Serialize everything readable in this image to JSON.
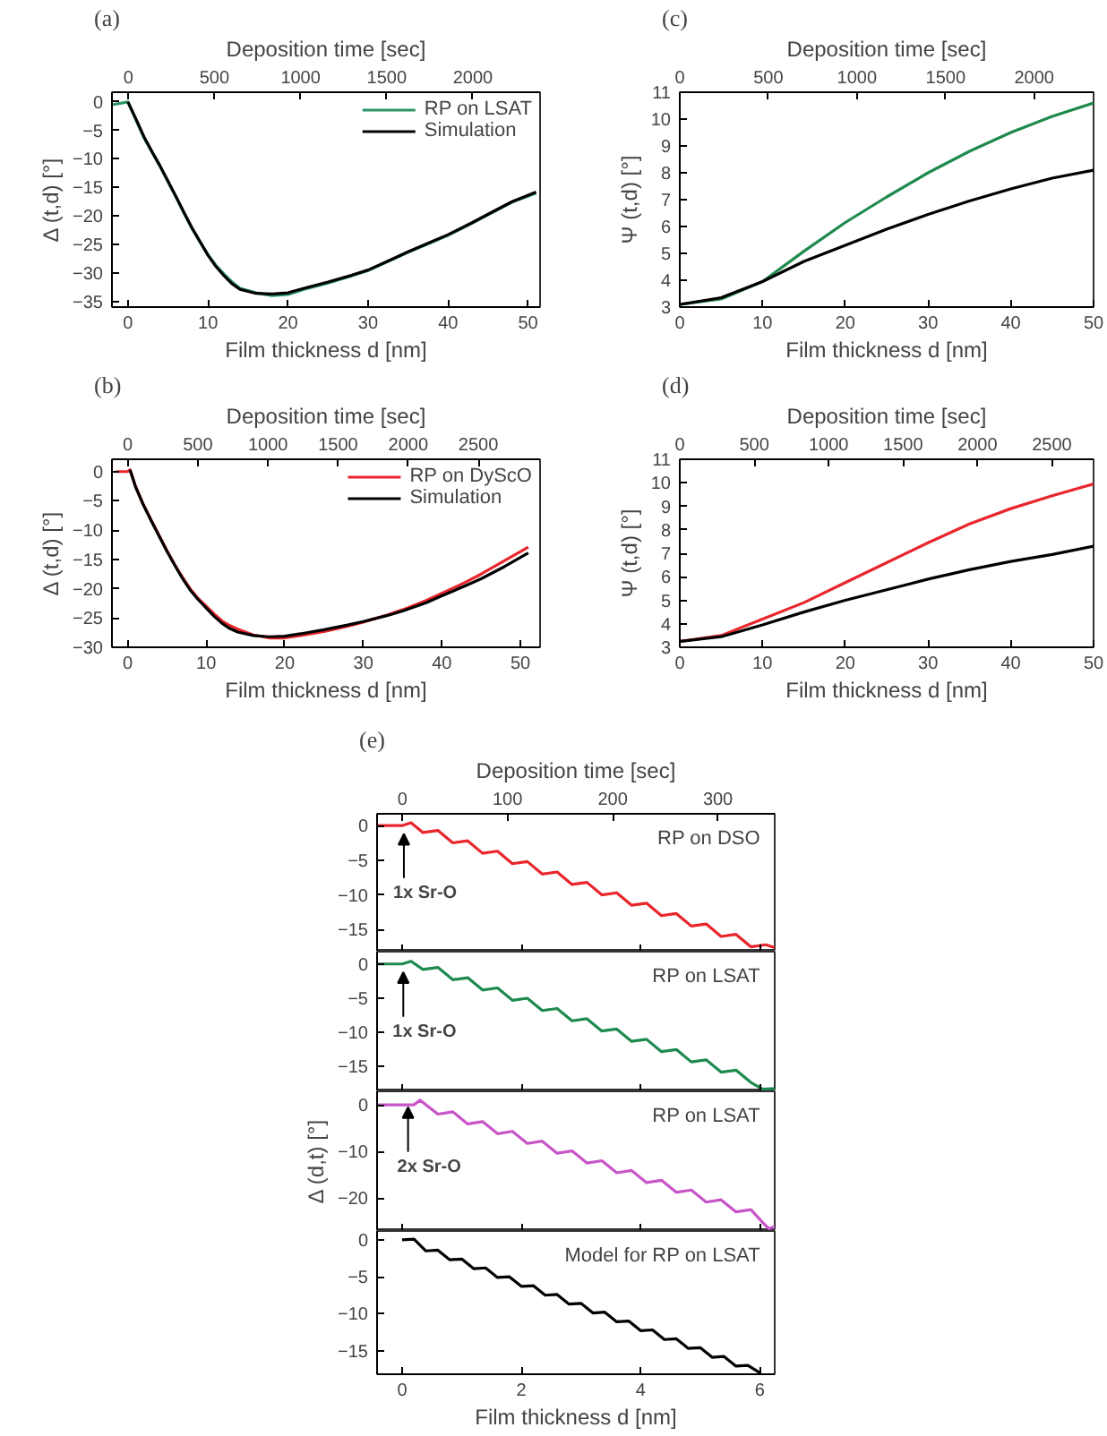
{
  "chart_data": [
    {
      "type": "line",
      "title": "(a)",
      "xlabel": "Film thickness d [nm]",
      "ylabel": "Δ (t,d) [°]",
      "x2label": "Deposition time [sec]",
      "xlim": [
        -2,
        51.5
      ],
      "xticks": [
        0,
        10,
        20,
        30,
        40,
        50
      ],
      "x2lim": [
        -95,
        2390
      ],
      "x2ticks": [
        0,
        500,
        1000,
        1500,
        2000
      ],
      "ylim": [
        -36,
        1.7
      ],
      "yticks": [
        0,
        -5,
        -10,
        -15,
        -20,
        -25,
        -30,
        -35
      ],
      "legend": "top right",
      "series": [
        {
          "name": "RP on LSAT",
          "color": "#2a9468",
          "x": [
            -2,
            0,
            1,
            2,
            3,
            4,
            5,
            6,
            7,
            8,
            9,
            10,
            11,
            12,
            13,
            14,
            16,
            18,
            20,
            22,
            25,
            28,
            30,
            33,
            35,
            38,
            40,
            43,
            45,
            48,
            51
          ],
          "values": [
            -0.5,
            0,
            -3.2,
            -6.3,
            -8.8,
            -11.3,
            -14.0,
            -16.7,
            -19.5,
            -22.2,
            -24.6,
            -26.8,
            -28.7,
            -30.2,
            -31.6,
            -32.7,
            -33.5,
            -34.0,
            -33.8,
            -32.9,
            -31.8,
            -30.5,
            -29.6,
            -27.7,
            -26.4,
            -24.6,
            -23.4,
            -21.3,
            -19.8,
            -17.6,
            -16.0
          ]
        },
        {
          "name": "Simulation",
          "color": "#000000",
          "x": [
            0,
            1,
            2,
            3,
            4,
            5,
            6,
            7,
            8,
            9,
            10,
            11,
            12,
            13,
            14,
            16,
            18,
            20,
            22,
            25,
            28,
            30,
            33,
            35,
            38,
            40,
            43,
            45,
            48,
            51
          ],
          "values": [
            0,
            -3.0,
            -6.1,
            -8.7,
            -11.2,
            -13.9,
            -16.6,
            -19.4,
            -22.1,
            -24.5,
            -26.9,
            -28.9,
            -30.5,
            -31.9,
            -32.9,
            -33.6,
            -33.7,
            -33.5,
            -32.7,
            -31.6,
            -30.4,
            -29.5,
            -27.6,
            -26.3,
            -24.5,
            -23.3,
            -21.2,
            -19.7,
            -17.5,
            -15.8
          ]
        }
      ]
    },
    {
      "type": "line",
      "title": "(c)",
      "xlabel": "Film thickness d [nm]",
      "ylabel": "Ψ (t,d) [°]",
      "x2label": "Deposition time [sec]",
      "xlim": [
        0,
        50
      ],
      "xticks": [
        0,
        10,
        20,
        30,
        40,
        50
      ],
      "x2lim": [
        0,
        2335
      ],
      "x2ticks": [
        0,
        500,
        1000,
        1500,
        2000
      ],
      "ylim": [
        3,
        11
      ],
      "yticks": [
        3,
        4,
        5,
        6,
        7,
        8,
        9,
        10,
        11
      ],
      "series": [
        {
          "color": "#1f8a4d",
          "x": [
            0,
            5,
            10,
            15,
            20,
            25,
            30,
            35,
            40,
            45,
            50
          ],
          "values": [
            3.1,
            3.3,
            3.95,
            5.08,
            6.15,
            7.1,
            8.0,
            8.8,
            9.5,
            10.1,
            10.6
          ]
        },
        {
          "color": "#000000",
          "x": [
            0,
            5,
            10,
            15,
            20,
            25,
            30,
            35,
            40,
            45,
            50
          ],
          "values": [
            3.1,
            3.35,
            3.95,
            4.7,
            5.3,
            5.9,
            6.45,
            6.95,
            7.4,
            7.8,
            8.1
          ]
        }
      ]
    },
    {
      "type": "line",
      "title": "(b)",
      "xlabel": "Film thickness d [nm]",
      "ylabel": "Δ (t,d) [°]",
      "x2label": "Deposition time [sec]",
      "xlim": [
        -2,
        52.5
      ],
      "xticks": [
        0,
        10,
        20,
        30,
        40,
        50
      ],
      "x2lim": [
        -112,
        2940
      ],
      "x2ticks": [
        0,
        500,
        1000,
        1500,
        2000,
        2500
      ],
      "ylim": [
        -30,
        2.1
      ],
      "yticks": [
        0,
        -5,
        -10,
        -15,
        -20,
        -25,
        -30
      ],
      "legend": "top right",
      "series": [
        {
          "name": "RP on DyScO",
          "color": "#e8262c",
          "x": [
            -1.5,
            0,
            0.3,
            1,
            2,
            3,
            4,
            5,
            6,
            7,
            8,
            9,
            10,
            11,
            12,
            13,
            14,
            16,
            18,
            20,
            22,
            25,
            28,
            30,
            33,
            35,
            38,
            40,
            43,
            45,
            48,
            51
          ],
          "values": [
            0,
            0,
            0.3,
            -2.5,
            -5.6,
            -8.3,
            -10.9,
            -13.5,
            -15.9,
            -18.1,
            -20.1,
            -21.7,
            -23.0,
            -24.3,
            -25.5,
            -26.3,
            -26.9,
            -27.9,
            -28.4,
            -28.4,
            -28.0,
            -27.3,
            -26.4,
            -25.7,
            -24.5,
            -23.6,
            -22.0,
            -20.8,
            -18.9,
            -17.5,
            -15.2,
            -12.9
          ]
        },
        {
          "name": "Simulation",
          "color": "#000000",
          "x": [
            0.3,
            1,
            2,
            3,
            4,
            5,
            6,
            7,
            8,
            9,
            10,
            11,
            12,
            13,
            14,
            16,
            18,
            20,
            22,
            25,
            28,
            30,
            33,
            35,
            38,
            40,
            43,
            45,
            48,
            51
          ],
          "values": [
            0.3,
            -2.6,
            -5.7,
            -8.4,
            -11.0,
            -13.6,
            -16.0,
            -18.3,
            -20.3,
            -21.9,
            -23.3,
            -24.7,
            -25.9,
            -26.8,
            -27.4,
            -28.0,
            -28.2,
            -28.1,
            -27.7,
            -27.0,
            -26.2,
            -25.6,
            -24.6,
            -23.8,
            -22.4,
            -21.2,
            -19.5,
            -18.3,
            -16.2,
            -13.9
          ]
        }
      ]
    },
    {
      "type": "line",
      "title": "(d)",
      "xlabel": "Film thickness d [nm]",
      "ylabel": "Ψ (t,d) [°]",
      "x2label": "Deposition time [sec]",
      "xlim": [
        0,
        50
      ],
      "xticks": [
        0,
        10,
        20,
        30,
        40,
        50
      ],
      "x2lim": [
        0,
        2780
      ],
      "x2ticks": [
        0,
        500,
        1000,
        1500,
        2000,
        2500
      ],
      "ylim": [
        3,
        11
      ],
      "yticks": [
        3,
        4,
        5,
        6,
        7,
        8,
        9,
        10,
        11
      ],
      "series": [
        {
          "color": "#e8262c",
          "x": [
            0,
            5,
            10,
            15,
            20,
            25,
            30,
            35,
            40,
            45,
            50
          ],
          "values": [
            3.25,
            3.5,
            4.2,
            4.9,
            5.75,
            6.6,
            7.45,
            8.25,
            8.9,
            9.45,
            9.95
          ]
        },
        {
          "color": "#000000",
          "x": [
            0,
            5,
            10,
            15,
            20,
            25,
            30,
            35,
            40,
            45,
            50
          ],
          "values": [
            3.25,
            3.45,
            3.95,
            4.5,
            5.0,
            5.45,
            5.9,
            6.3,
            6.65,
            6.95,
            7.3
          ]
        }
      ]
    },
    {
      "type": "line",
      "title": "(e)",
      "x2label": "Deposition time [sec]",
      "xlim": [
        -0.42,
        6.25
      ],
      "xticks": [
        0,
        2,
        4,
        6
      ],
      "x2lim": [
        -24,
        354
      ],
      "x2ticks": [
        0,
        100,
        200,
        300
      ],
      "ylim": [
        -18.2,
        1.7
      ],
      "yticks": [
        0,
        -5,
        -10,
        -15
      ],
      "tick_labels": "y",
      "annotations": [
        "RP on DSO",
        {
          "text": "1x Sr-O",
          "x": 0.03,
          "y": -1.2
        }
      ],
      "series": [
        {
          "color": "#e8262c",
          "x": [
            -0.42,
            0,
            0.15,
            0.35,
            0.6,
            0.85,
            1.1,
            1.35,
            1.6,
            1.85,
            2.1,
            2.35,
            2.6,
            2.85,
            3.1,
            3.35,
            3.6,
            3.85,
            4.1,
            4.35,
            4.6,
            4.85,
            5.1,
            5.35,
            5.6,
            5.85,
            6.1,
            6.25
          ],
          "values": [
            0,
            0,
            0.4,
            -1.0,
            -0.7,
            -2.5,
            -2.2,
            -4.0,
            -3.7,
            -5.5,
            -5.2,
            -7.0,
            -6.7,
            -8.5,
            -8.2,
            -10.0,
            -9.7,
            -11.5,
            -11.2,
            -13.0,
            -12.7,
            -14.5,
            -14.2,
            -16.0,
            -15.7,
            -17.5,
            -17.2,
            -17.6
          ]
        }
      ]
    },
    {
      "type": "line",
      "xlim": [
        -0.42,
        6.25
      ],
      "xticks": [
        0,
        2,
        4,
        6
      ],
      "ylim": [
        -18.6,
        1.8
      ],
      "yticks": [
        0,
        -5,
        -10,
        -15
      ],
      "tick_labels": "y",
      "annotations": [
        "RP on LSAT",
        {
          "text": "1x Sr-O",
          "x": 0.02,
          "y": -1.2
        }
      ],
      "series": [
        {
          "color": "#1e8a50",
          "x": [
            -0.42,
            0,
            0.15,
            0.35,
            0.6,
            0.85,
            1.1,
            1.35,
            1.6,
            1.85,
            2.1,
            2.35,
            2.6,
            2.85,
            3.1,
            3.35,
            3.6,
            3.85,
            4.1,
            4.35,
            4.6,
            4.85,
            5.1,
            5.35,
            5.6,
            5.85,
            6.05,
            6.25
          ],
          "values": [
            0,
            0,
            0.4,
            -0.8,
            -0.5,
            -2.3,
            -2.0,
            -3.8,
            -3.5,
            -5.3,
            -5.0,
            -6.8,
            -6.5,
            -8.3,
            -8.0,
            -9.8,
            -9.5,
            -11.3,
            -11.0,
            -12.8,
            -12.5,
            -14.3,
            -14.0,
            -15.8,
            -15.5,
            -17.3,
            -18.3,
            -18.2
          ]
        }
      ]
    },
    {
      "type": "line",
      "ylabel": "Δ (d,t) [°]",
      "xlim": [
        -0.42,
        6.25
      ],
      "xticks": [
        0,
        2,
        4,
        6
      ],
      "ylim": [
        -27.1,
        2.9
      ],
      "yticks": [
        0,
        -10,
        -20
      ],
      "tick_labels": "y",
      "annotations": [
        "RP on LSAT",
        {
          "text": "2x Sr-O",
          "x": 0.1,
          "y": -0.5
        }
      ],
      "series": [
        {
          "color": "#c855c8",
          "x": [
            -0.42,
            0.2,
            0.3,
            0.6,
            0.85,
            1.1,
            1.35,
            1.6,
            1.85,
            2.1,
            2.35,
            2.6,
            2.85,
            3.1,
            3.35,
            3.6,
            3.85,
            4.1,
            4.35,
            4.6,
            4.85,
            5.1,
            5.35,
            5.6,
            5.85,
            6.05,
            6.15,
            6.25
          ],
          "values": [
            0,
            0,
            1.0,
            -2.0,
            -1.5,
            -4.1,
            -3.6,
            -6.2,
            -5.7,
            -8.3,
            -7.8,
            -10.4,
            -9.9,
            -12.5,
            -12.0,
            -14.6,
            -14.1,
            -16.7,
            -16.2,
            -18.8,
            -18.3,
            -20.9,
            -20.4,
            -23.0,
            -22.5,
            -25.3,
            -26.6,
            -26.2
          ]
        }
      ]
    },
    {
      "type": "line",
      "xlabel": "Film thickness d [nm]",
      "xlim": [
        -0.42,
        6.25
      ],
      "xticks": [
        0,
        2,
        4,
        6
      ],
      "ylim": [
        -18.2,
        1.2
      ],
      "yticks": [
        0,
        -5,
        -10,
        -15
      ],
      "annotations": [
        "Model for RP on LSAT"
      ],
      "series": [
        {
          "color": "#000000",
          "x": [
            0,
            0.2,
            0.4,
            0.6,
            0.8,
            1.0,
            1.2,
            1.4,
            1.6,
            1.8,
            2.0,
            2.2,
            2.4,
            2.6,
            2.8,
            3.0,
            3.2,
            3.4,
            3.6,
            3.8,
            4.0,
            4.2,
            4.4,
            4.6,
            4.8,
            5.0,
            5.2,
            5.4,
            5.6,
            5.8,
            6.0
          ],
          "values": [
            0,
            0.1,
            -1.5,
            -1.4,
            -2.7,
            -2.6,
            -3.9,
            -3.8,
            -5.1,
            -5.0,
            -6.3,
            -6.2,
            -7.5,
            -7.4,
            -8.7,
            -8.6,
            -9.9,
            -9.8,
            -11.1,
            -11.0,
            -12.3,
            -12.2,
            -13.5,
            -13.4,
            -14.7,
            -14.6,
            -15.9,
            -15.8,
            -17.1,
            -17.0,
            -18.0
          ]
        }
      ]
    }
  ]
}
